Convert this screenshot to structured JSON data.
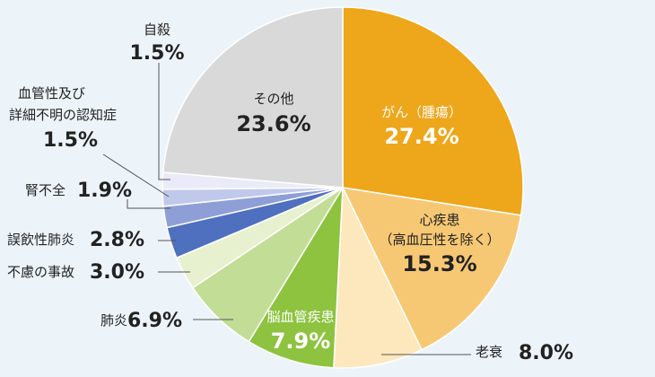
{
  "chart_data": {
    "type": "pie",
    "title": "",
    "slices": [
      {
        "name": "がん（腫瘍）",
        "value": 27.4,
        "value_label": "27.4%",
        "color": "#eea61a"
      },
      {
        "name": "心疾患",
        "name2": "（高血圧性を除く）",
        "value": 15.3,
        "value_label": "15.3%",
        "color": "#f7c874"
      },
      {
        "name": "老衰",
        "value": 8.0,
        "value_label": "8.0%",
        "color": "#fde8bd"
      },
      {
        "name": "脳血管疾患",
        "value": 7.9,
        "value_label": "7.9%",
        "color": "#8dc33f"
      },
      {
        "name": "肺炎",
        "value": 6.9,
        "value_label": "6.9%",
        "color": "#c2dd96"
      },
      {
        "name": "不慮の事故",
        "value": 3.0,
        "value_label": "3.0%",
        "color": "#e8f1cf"
      },
      {
        "name": "誤飲性肺炎",
        "value": 2.8,
        "value_label": "2.8%",
        "color": "#4f6fbf"
      },
      {
        "name": "腎不全",
        "value": 1.9,
        "value_label": "1.9%",
        "color": "#8e9fd8"
      },
      {
        "name": "血管性及び",
        "name2": "詳細不明の認知症",
        "value": 1.5,
        "value_label": "1.5%",
        "color": "#c0c9ec"
      },
      {
        "name": "自殺",
        "value": 1.5,
        "value_label": "1.5%",
        "color": "#e9ecf8"
      },
      {
        "name": "その他",
        "value": 23.6,
        "value_label": "23.6%",
        "color": "#d9d9d9"
      }
    ]
  }
}
